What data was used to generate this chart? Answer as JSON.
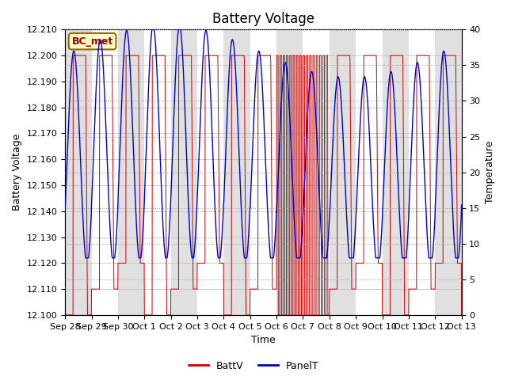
{
  "title": "Battery Voltage",
  "xlabel": "Time",
  "ylabel_left": "Battery Voltage",
  "ylabel_right": "Temperature",
  "ylim_left": [
    12.1,
    12.21
  ],
  "ylim_right": [
    0,
    40
  ],
  "yticks_left": [
    12.1,
    12.11,
    12.12,
    12.13,
    12.14,
    12.15,
    12.16,
    12.17,
    12.18,
    12.19,
    12.2,
    12.21
  ],
  "yticks_right": [
    0,
    5,
    10,
    15,
    20,
    25,
    30,
    35,
    40
  ],
  "xtick_labels": [
    "Sep 28",
    "Sep 29",
    "Sep 30",
    "Oct 1",
    "Oct 2",
    "Oct 3",
    "Oct 4",
    "Oct 5",
    "Oct 6",
    "Oct 7",
    "Oct 8",
    "Oct 9",
    "Oct 10",
    "Oct 11",
    "Oct 12",
    "Oct 13"
  ],
  "batt_color": "#cc0000",
  "panel_color": "#0000cc",
  "background_light": "#e0e0e0",
  "background_dark": "#ffffff",
  "legend_label": "BC_met",
  "legend_bg": "#ffffcc",
  "legend_border": "#996600",
  "batt_label": "BattV",
  "panel_label": "PanelT",
  "title_fontsize": 12,
  "axis_fontsize": 9,
  "tick_fontsize": 8,
  "n_days": 15,
  "pts_per_day": 144
}
